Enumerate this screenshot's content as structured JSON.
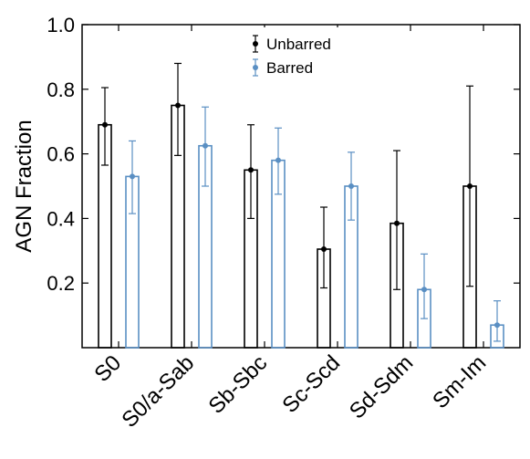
{
  "chart_data": {
    "type": "bar",
    "title": "",
    "xlabel": "",
    "ylabel": "AGN Fraction",
    "ylim": [
      0,
      1.0
    ],
    "yticks": [
      0.2,
      0.4,
      0.6,
      0.8,
      1.0
    ],
    "ytick_labels": [
      "0.2",
      "0.4",
      "0.6",
      "0.8",
      "1.0"
    ],
    "categories": [
      "S0",
      "S0/a-Sab",
      "Sb-Sbc",
      "Sc-Scd",
      "Sd-Sdm",
      "Sm-Im"
    ],
    "grid": false,
    "legend_position": "top-center",
    "series": [
      {
        "name": "Unbarred",
        "color": "#000000",
        "values": [
          0.69,
          0.75,
          0.55,
          0.305,
          0.385,
          0.5
        ],
        "err_low": [
          0.565,
          0.595,
          0.4,
          0.185,
          0.18,
          0.19
        ],
        "err_high": [
          0.805,
          0.88,
          0.69,
          0.435,
          0.61,
          0.81
        ]
      },
      {
        "name": "Barred",
        "color": "#5a8fc3",
        "values": [
          0.53,
          0.625,
          0.58,
          0.5,
          0.18,
          0.07
        ],
        "err_low": [
          0.415,
          0.5,
          0.475,
          0.395,
          0.09,
          0.02
        ],
        "err_high": [
          0.64,
          0.745,
          0.68,
          0.605,
          0.29,
          0.145
        ]
      }
    ]
  }
}
